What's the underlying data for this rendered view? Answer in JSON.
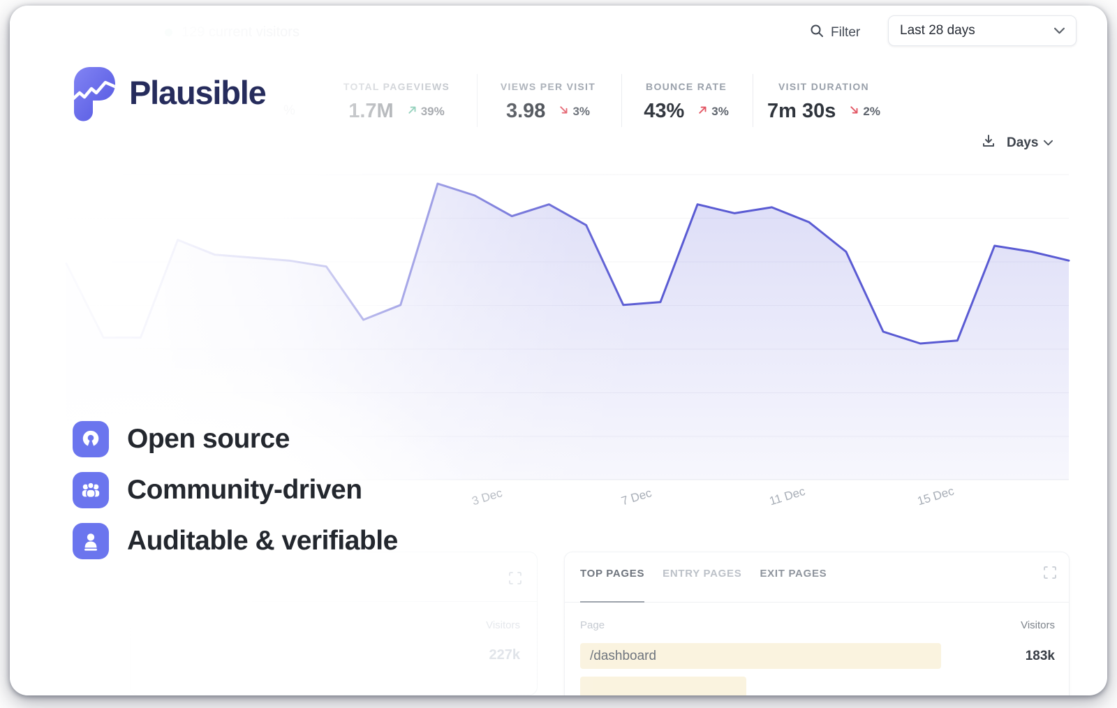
{
  "topbar": {
    "current_visitors": "129 current visitors",
    "filter_label": "Filter",
    "date_range": "Last 28 days"
  },
  "brand": {
    "name": "Plausible"
  },
  "faded_percent": "%",
  "stats": [
    {
      "label": "TOTAL PAGEVIEWS",
      "value": "1.7M",
      "change": "39%",
      "direction": "up",
      "tone": "good"
    },
    {
      "label": "VIEWS PER VISIT",
      "value": "3.98",
      "change": "3%",
      "direction": "down",
      "tone": "bad"
    },
    {
      "label": "BOUNCE RATE",
      "value": "43%",
      "change": "3%",
      "direction": "up",
      "tone": "bad"
    },
    {
      "label": "VISIT DURATION",
      "value": "7m 30s",
      "change": "2%",
      "direction": "down",
      "tone": "bad"
    }
  ],
  "interval_label": "Days",
  "chart_data": {
    "type": "area",
    "series_name": "Visitors",
    "x_unit": "day",
    "x_ticks": [
      {
        "label": "3 Dec",
        "pos": 0.444
      },
      {
        "label": "7 Dec",
        "pos": 0.58
      },
      {
        "label": "11 Dec",
        "pos": 0.715
      },
      {
        "label": "15 Dec",
        "pos": 0.85
      }
    ],
    "values": [
      73,
      48,
      48,
      81,
      76,
      75,
      74,
      72,
      54,
      59,
      100,
      96,
      89,
      93,
      86,
      59,
      60,
      93,
      90,
      92,
      87,
      77,
      50,
      46,
      47,
      79,
      77,
      74
    ],
    "y_axis": "unlabeled; values normalized, 100 = peak day",
    "grid": "horizontal",
    "line_color": "#5a5bd3"
  },
  "features": [
    {
      "label": "Open source",
      "icon": "open-source-icon"
    },
    {
      "label": "Community-driven",
      "icon": "community-icon"
    },
    {
      "label": "Auditable & verifiable",
      "icon": "stamp-icon"
    }
  ],
  "left_panel": {
    "visitors_header": "Visitors",
    "visitors_value": "227k"
  },
  "pages_panel": {
    "tabs": [
      "TOP PAGES",
      "ENTRY PAGES",
      "EXIT PAGES"
    ],
    "active_tab": "TOP PAGES",
    "col_page": "Page",
    "col_visitors": "Visitors",
    "rows": [
      {
        "page": "/dashboard",
        "visitors": "183k",
        "bar_ratio": 0.76
      },
      {
        "page": "",
        "visitors": "",
        "bar_ratio": 0.35
      }
    ]
  },
  "colors": {
    "accent_purple": "#6B75EE",
    "chart_line": "#5a5bd3",
    "brand_navy": "#262c5c",
    "positive_green": "#2aa37a",
    "negative_red": "#e25563",
    "page_bar_yellow": "#faf3df",
    "live_dot_teal": "#97dcc5"
  }
}
